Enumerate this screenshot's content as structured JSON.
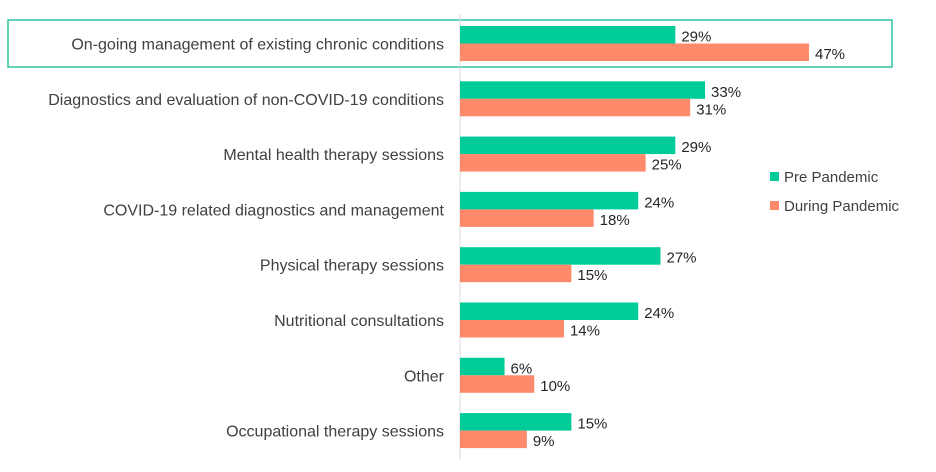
{
  "chart_data": {
    "type": "bar",
    "orientation": "horizontal",
    "categories": [
      "On-going management of existing chronic conditions",
      "Diagnostics and evaluation of non-COVID-19 conditions",
      "Mental health therapy sessions",
      "COVID-19 related diagnostics and management",
      "Physical therapy sessions",
      "Nutritional consultations",
      "Other",
      "Occupational therapy sessions"
    ],
    "series": [
      {
        "name": "Pre Pandemic",
        "color": "#00CC99",
        "values": [
          29,
          33,
          29,
          24,
          27,
          24,
          6,
          15
        ],
        "labels": [
          "29%",
          "33%",
          "29%",
          "24%",
          "27%",
          "24%",
          "6%",
          "15%"
        ]
      },
      {
        "name": "During Pandemic",
        "color": "#FF8A6B",
        "values": [
          47,
          31,
          25,
          18,
          15,
          14,
          10,
          9
        ],
        "labels": [
          "47%",
          "31%",
          "25%",
          "18%",
          "15%",
          "14%",
          "10%",
          "9%"
        ]
      }
    ],
    "value_unit": "%",
    "grid": false,
    "legend_position": "right",
    "highlighted_category": "On-going management of existing chronic conditions",
    "highlight_color": "#2EC4A0"
  }
}
